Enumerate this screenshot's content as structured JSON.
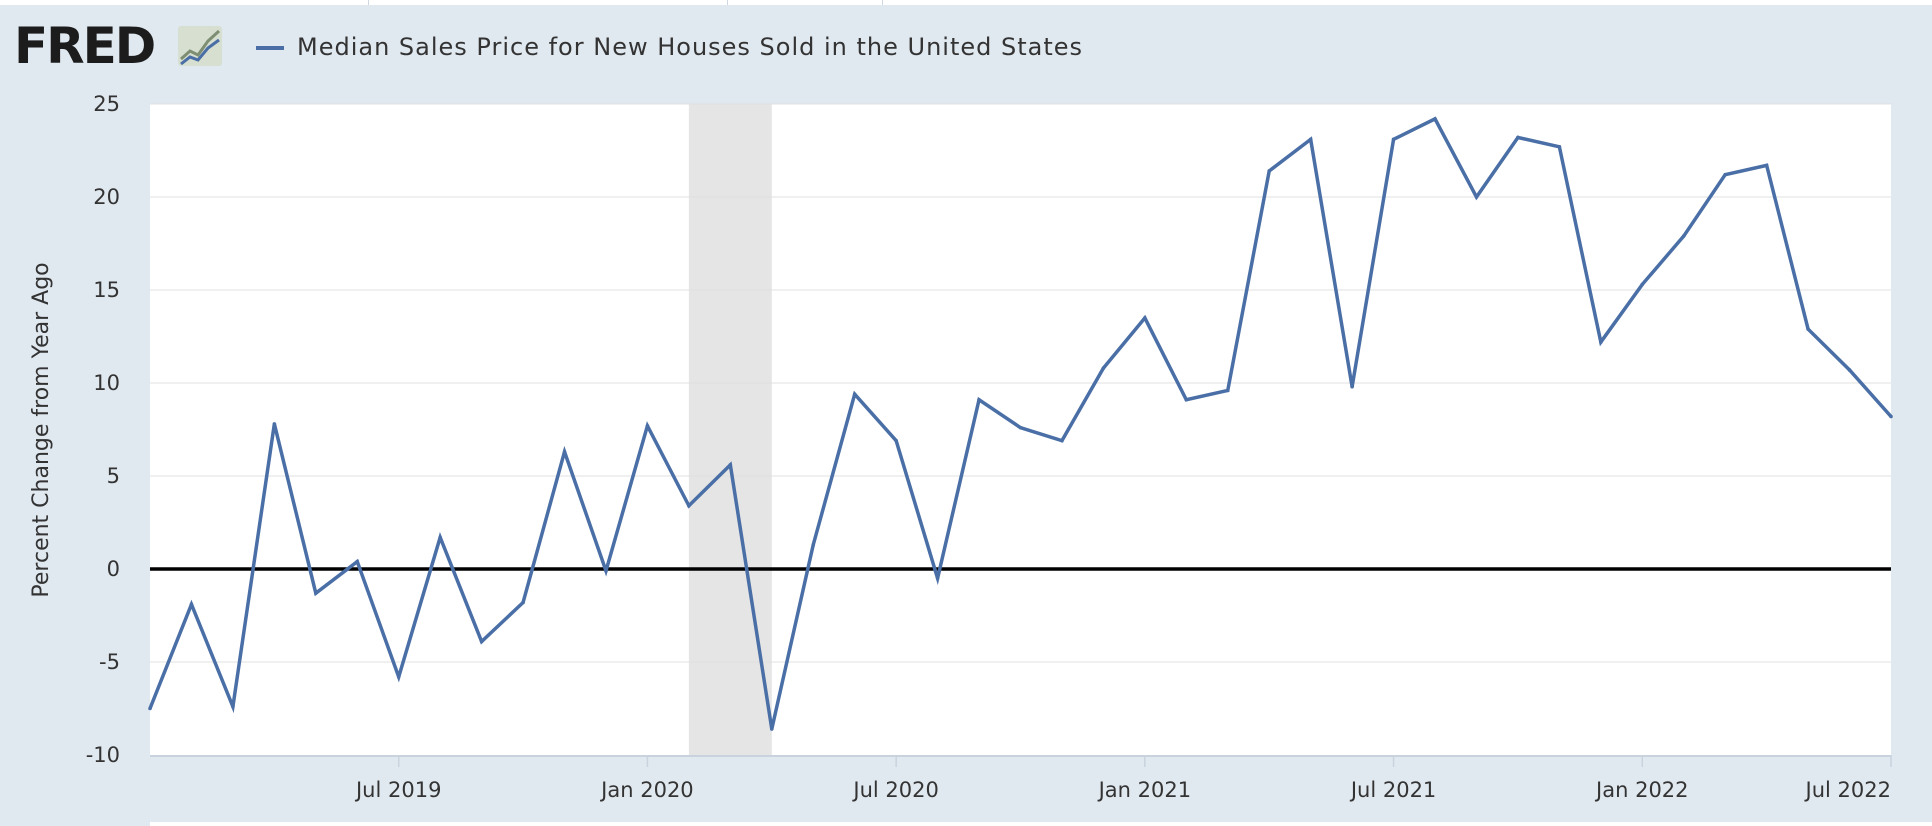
{
  "logo": {
    "text": "FRED",
    "icon": "fred-line-chart-icon"
  },
  "colors": {
    "background": "#e1e9f0",
    "plot_background": "#ffffff",
    "series": "#4a6fa6",
    "recession_shading": "#e5e5e5",
    "zero_line": "#000000",
    "gridline": "#e0e0e0"
  },
  "chart_data": {
    "type": "line",
    "title": "",
    "xlabel": "",
    "ylabel": "Percent Change from Year Ago",
    "ylim": [
      -10,
      25
    ],
    "xlim": [
      "2019-01",
      "2022-07"
    ],
    "yticks": [
      -10,
      -5,
      0,
      5,
      10,
      15,
      20,
      25
    ],
    "xticks": [
      {
        "date": "2019-07",
        "label": "Jul 2019"
      },
      {
        "date": "2020-01",
        "label": "Jan 2020"
      },
      {
        "date": "2020-07",
        "label": "Jul 2020"
      },
      {
        "date": "2021-01",
        "label": "Jan 2021"
      },
      {
        "date": "2021-07",
        "label": "Jul 2021"
      },
      {
        "date": "2022-01",
        "label": "Jan 2022"
      },
      {
        "date": "2022-07",
        "label": "Jul 2022"
      }
    ],
    "grid": true,
    "legend_position": "top-left",
    "recession": {
      "start": "2020-02",
      "end": "2020-04"
    },
    "zero_line": true,
    "series": [
      {
        "name": "Median Sales Price for New Houses Sold in the United States",
        "x": [
          "2019-01",
          "2019-02",
          "2019-03",
          "2019-04",
          "2019-05",
          "2019-06",
          "2019-07",
          "2019-08",
          "2019-09",
          "2019-10",
          "2019-11",
          "2019-12",
          "2020-01",
          "2020-02",
          "2020-03",
          "2020-04",
          "2020-05",
          "2020-06",
          "2020-07",
          "2020-08",
          "2020-09",
          "2020-10",
          "2020-11",
          "2020-12",
          "2021-01",
          "2021-02",
          "2021-03",
          "2021-04",
          "2021-05",
          "2021-06",
          "2021-07",
          "2021-08",
          "2021-09",
          "2021-10",
          "2021-11",
          "2021-12",
          "2022-01",
          "2022-02",
          "2022-03",
          "2022-04",
          "2022-05",
          "2022-06",
          "2022-07"
        ],
        "values": [
          -7.5,
          -1.9,
          -7.4,
          7.8,
          -1.3,
          0.4,
          -5.8,
          1.7,
          -3.9,
          -1.8,
          6.3,
          -0.1,
          7.7,
          3.4,
          5.6,
          -8.6,
          1.3,
          9.4,
          6.9,
          -0.5,
          9.1,
          7.6,
          6.9,
          10.8,
          13.5,
          9.1,
          9.6,
          21.4,
          23.1,
          9.8,
          23.1,
          24.2,
          20.0,
          23.2,
          22.7,
          12.2,
          15.3,
          17.9,
          21.2,
          21.7,
          12.9,
          10.7,
          8.2
        ]
      }
    ]
  }
}
